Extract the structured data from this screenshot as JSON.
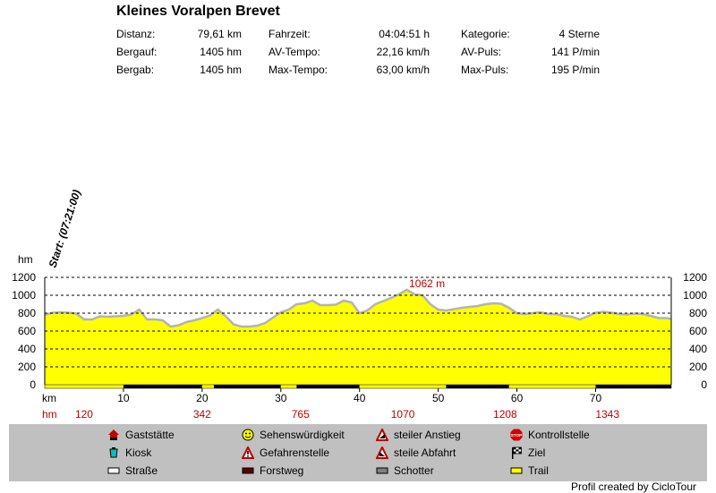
{
  "title": "Kleines Voralpen Brevet",
  "stats": [
    {
      "label": "Distanz:",
      "value": "79,61 km"
    },
    {
      "label": "Bergauf:",
      "value": "1405 hm"
    },
    {
      "label": "Bergab:",
      "value": "1405 hm"
    },
    {
      "label": "Fahrzeit:",
      "value": "04:04:51 h"
    },
    {
      "label": "AV-Tempo:",
      "value": "22,16 km/h"
    },
    {
      "label": "Max-Tempo:",
      "value": "63,00 km/h"
    },
    {
      "label": "Kategorie:",
      "value": "4 Sterne"
    },
    {
      "label": "AV-Puls:",
      "value": "141 P/min"
    },
    {
      "label": "Max-Puls:",
      "value": "195 P/min"
    }
  ],
  "chart_data": {
    "type": "area",
    "ylabel": "hm",
    "xlabel": "km",
    "ylim": [
      0,
      1200
    ],
    "xlim": [
      0,
      79.61
    ],
    "yticks": [
      0,
      200,
      400,
      600,
      800,
      1000,
      1200
    ],
    "xticks": [
      10,
      20,
      30,
      40,
      50,
      60,
      70
    ],
    "grid": "dashed horizontal",
    "max_label": "1062 m",
    "max_point": {
      "x": 46.3,
      "y": 1062
    },
    "start_label": "Start: (07:21:00)",
    "hm_row_label": "hm",
    "cumulative_climb": [
      {
        "x": 5,
        "value": "120"
      },
      {
        "x": 20,
        "value": "342"
      },
      {
        "x": 32.5,
        "value": "765"
      },
      {
        "x": 45.5,
        "value": "1070"
      },
      {
        "x": 58.5,
        "value": "1208"
      },
      {
        "x": 71.5,
        "value": "1343"
      }
    ],
    "x": [
      0,
      1,
      2,
      3,
      4,
      5,
      6,
      7,
      8,
      9,
      10,
      11,
      12,
      13,
      14,
      15,
      16,
      17,
      18,
      19,
      20,
      21,
      22,
      23,
      24,
      25,
      26,
      27,
      28,
      29,
      30,
      31,
      32,
      33,
      34,
      35,
      36,
      37,
      38,
      39,
      40,
      41,
      42,
      43,
      44,
      45,
      46,
      47,
      48,
      49,
      50,
      51,
      52,
      53,
      54,
      55,
      56,
      57,
      58,
      59,
      60,
      61,
      62,
      63,
      64,
      65,
      66,
      67,
      68,
      69,
      70,
      71,
      72,
      73,
      74,
      75,
      76,
      77,
      78,
      79,
      79.61
    ],
    "y": [
      780,
      805,
      810,
      805,
      795,
      730,
      730,
      765,
      760,
      765,
      770,
      785,
      840,
      730,
      730,
      720,
      650,
      665,
      700,
      720,
      745,
      775,
      840,
      765,
      675,
      650,
      650,
      660,
      690,
      750,
      810,
      840,
      900,
      910,
      940,
      890,
      890,
      895,
      940,
      920,
      800,
      830,
      900,
      935,
      970,
      1010,
      1062,
      1010,
      1000,
      900,
      840,
      830,
      845,
      860,
      870,
      880,
      900,
      910,
      905,
      860,
      800,
      790,
      800,
      810,
      790,
      790,
      770,
      760,
      730,
      765,
      805,
      815,
      805,
      790,
      785,
      795,
      790,
      770,
      745,
      745,
      735
    ],
    "surface_bands": [
      {
        "from": 0,
        "to": 10,
        "type": "Trail"
      },
      {
        "from": 10,
        "to": 20,
        "type": "Forstweg"
      },
      {
        "from": 20,
        "to": 21.5,
        "type": "Trail"
      },
      {
        "from": 21.5,
        "to": 30,
        "type": "Forstweg"
      },
      {
        "from": 30,
        "to": 32,
        "type": "Trail"
      },
      {
        "from": 32,
        "to": 40,
        "type": "Forstweg"
      },
      {
        "from": 40,
        "to": 51,
        "type": "Trail"
      },
      {
        "from": 51,
        "to": 59,
        "type": "Forstweg"
      },
      {
        "from": 59,
        "to": 70,
        "type": "Trail"
      },
      {
        "from": 70,
        "to": 79.61,
        "type": "Forstweg"
      }
    ]
  },
  "legend": [
    {
      "label": "Gaststätte",
      "icon": "house-icon"
    },
    {
      "label": "Kiosk",
      "icon": "cup-icon"
    },
    {
      "label": "Straße",
      "icon": "road-swatch-icon",
      "color": "#ffffff"
    },
    {
      "label": "Sehenswürdigkeit",
      "icon": "smiley-icon"
    },
    {
      "label": "Gefahrenstelle",
      "icon": "warning-icon"
    },
    {
      "label": "Forstweg",
      "icon": "forest-road-swatch-icon",
      "color": "#5a0000"
    },
    {
      "label": "steiler Anstieg",
      "icon": "steep-climb-icon"
    },
    {
      "label": "steile Abfahrt",
      "icon": "steep-descent-icon"
    },
    {
      "label": "Schotter",
      "icon": "gravel-swatch-icon",
      "color": "#808080"
    },
    {
      "label": "Kontrollstelle",
      "icon": "stop-icon"
    },
    {
      "label": "Ziel",
      "icon": "finish-flag-icon"
    },
    {
      "label": "Trail",
      "icon": "trail-swatch-icon",
      "color": "#ffff00"
    }
  ],
  "colors": {
    "fill": "#ffff00",
    "profile_line": "#b4b4b4",
    "max_label": "#c00000",
    "climb_numbers": "#c00000"
  },
  "footer": "Profil created by CicloTour"
}
